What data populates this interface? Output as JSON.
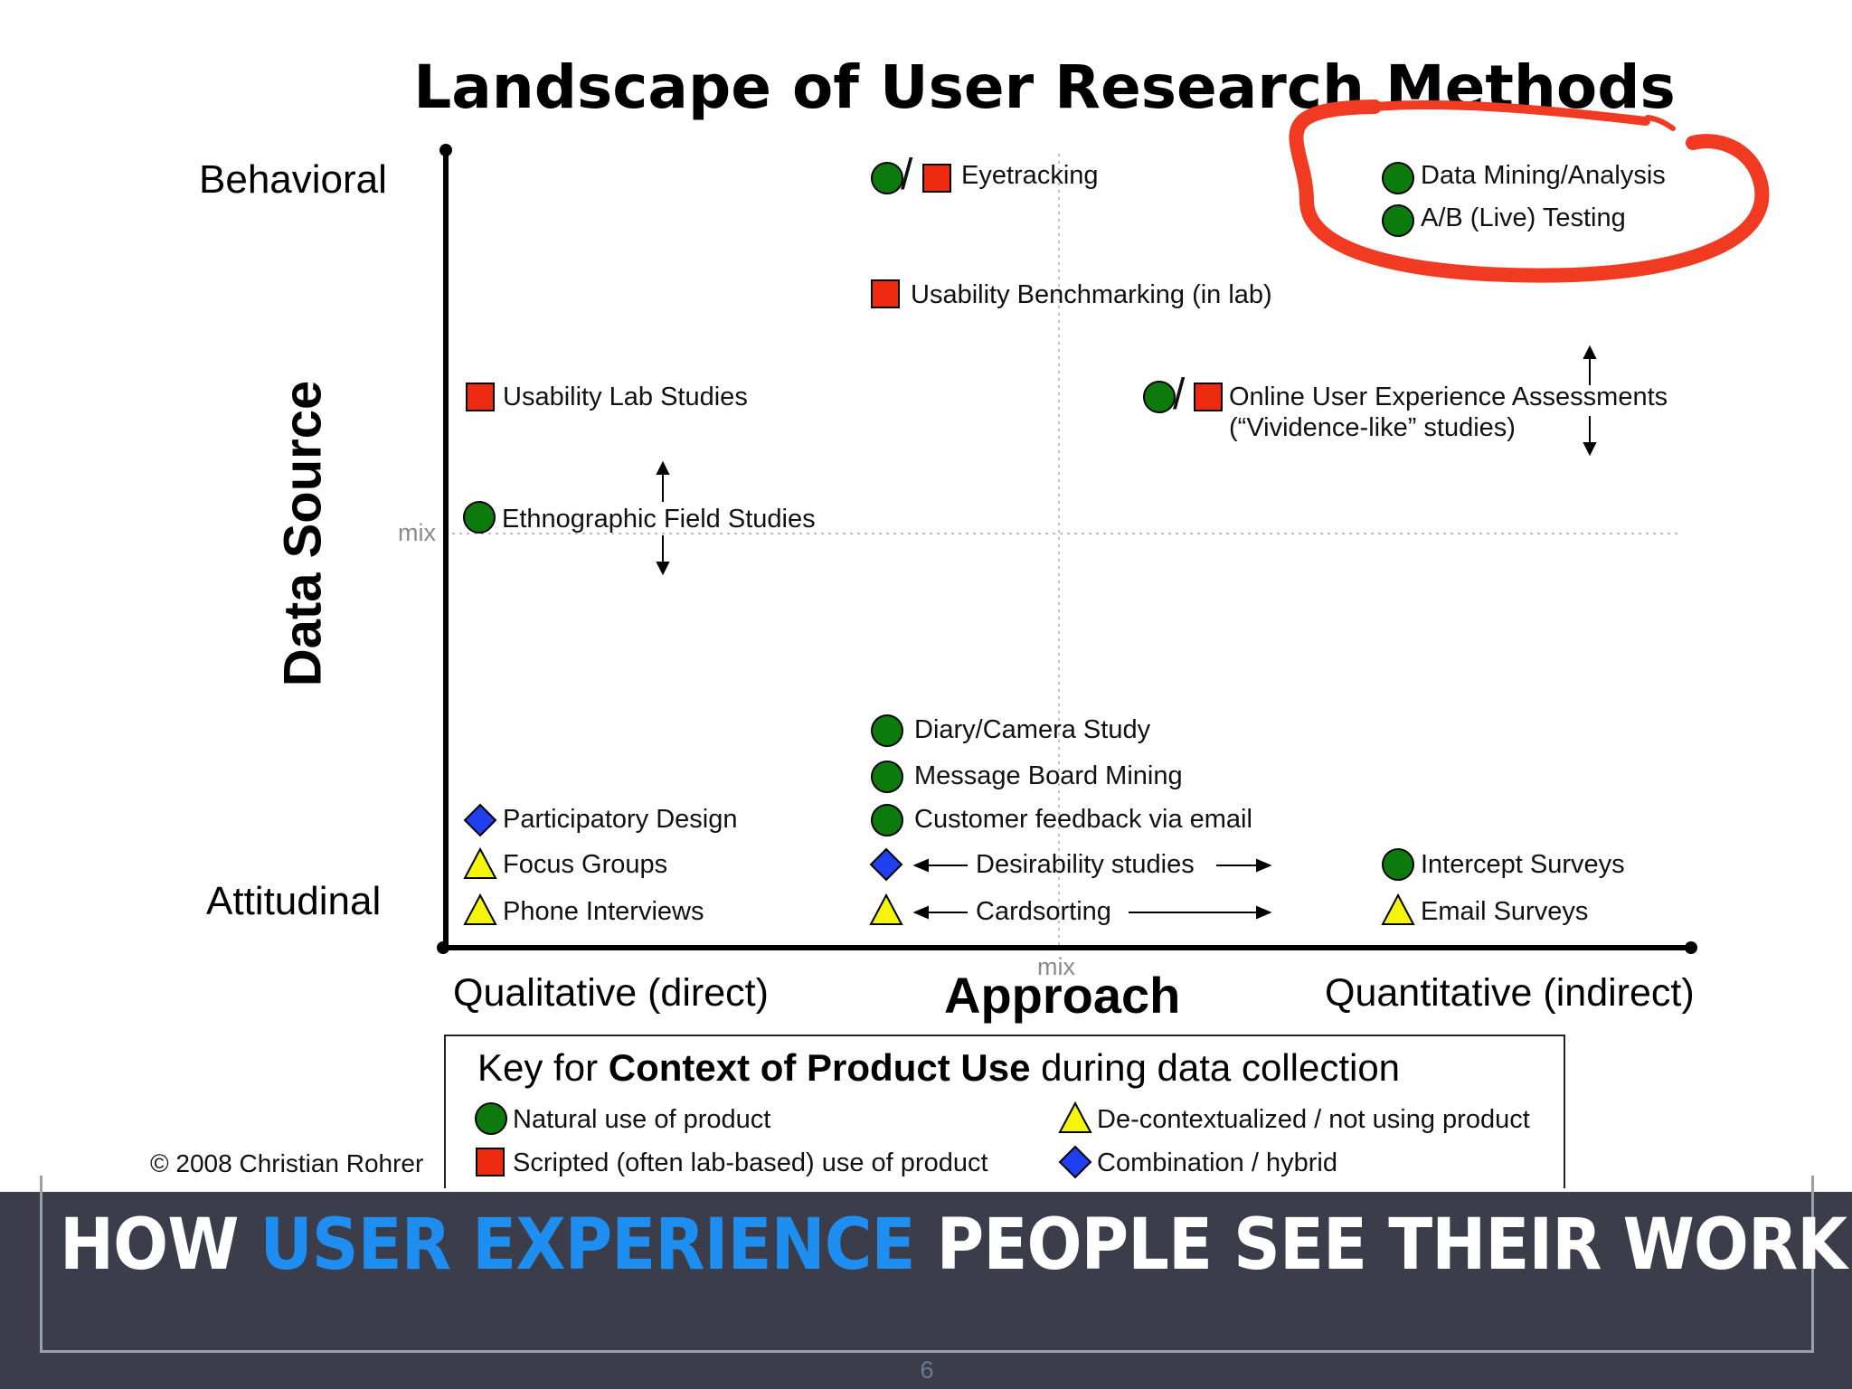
{
  "title": "Landscape of User Research Methods",
  "y_axis": {
    "name": "Data Source",
    "top": "Behavioral",
    "bottom": "Attitudinal",
    "mid": "mix"
  },
  "x_axis": {
    "name": "Approach",
    "left": "Qualitative (direct)",
    "right": "Quantitative (indirect)",
    "mid": "mix"
  },
  "methods": {
    "eyetracking": "Eyetracking",
    "data_mining": "Data Mining/Analysis",
    "ab_testing": "A/B (Live) Testing",
    "benchmarking": "Usability Benchmarking (in lab)",
    "lab_studies": "Usability Lab Studies",
    "online_ux_1": "Online User Experience Assessments",
    "online_ux_2": "(“Vividence-like” studies)",
    "ethnographic": "Ethnographic Field Studies",
    "diary": "Diary/Camera Study",
    "message_board": "Message Board Mining",
    "customer_feedback": "Customer feedback via email",
    "participatory": "Participatory Design",
    "focus_groups": "Focus Groups",
    "phone_interviews": "Phone Interviews",
    "desirability": "Desirability studies",
    "cardsorting": "Cardsorting",
    "intercept": "Intercept Surveys",
    "email_surveys": "Email Surveys"
  },
  "slash": "/",
  "key": {
    "prefix": "Key for ",
    "bold": "Context of Product Use",
    "suffix": " during data collection",
    "natural": "Natural use of product",
    "scripted": "Scripted (often lab-based) use of product",
    "decontextualized": "De-contextualized / not using product",
    "combination": "Combination / hybrid"
  },
  "copyright": "© 2008 Christian Rohrer",
  "banner": {
    "part1": "HOW ",
    "highlight": "USER EXPERIENCE",
    "part2": " PEOPLE SEE THEIR WORK"
  },
  "page_number": "6",
  "colors": {
    "natural": "#0d7a0d",
    "scripted": "#ee2a10",
    "decontextualized": "#f5f50a",
    "combination": "#1f3ff0",
    "highlight_circle": "#f03a22",
    "banner_bg": "#3b3d4a",
    "banner_highlight": "#1e8ff0"
  }
}
